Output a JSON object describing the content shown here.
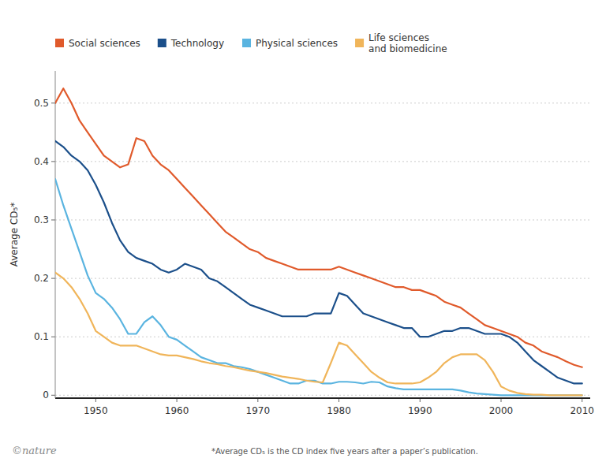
{
  "chart_data": {
    "type": "line",
    "y_label": "Average CD₅*",
    "annotations": [
      "*Average CD₅ is the CD index five years after a paper’s publication.",
      "©nature"
    ],
    "x": [
      1945,
      1946,
      1947,
      1948,
      1949,
      1950,
      1951,
      1952,
      1953,
      1954,
      1955,
      1956,
      1957,
      1958,
      1959,
      1960,
      1961,
      1962,
      1963,
      1964,
      1965,
      1966,
      1967,
      1968,
      1969,
      1970,
      1971,
      1972,
      1973,
      1974,
      1975,
      1976,
      1977,
      1978,
      1979,
      1980,
      1981,
      1982,
      1983,
      1984,
      1985,
      1986,
      1987,
      1988,
      1989,
      1990,
      1991,
      1992,
      1993,
      1994,
      1995,
      1996,
      1997,
      1998,
      1999,
      2000,
      2001,
      2002,
      2003,
      2004,
      2005,
      2006,
      2007,
      2008,
      2009,
      2010
    ],
    "series": [
      {
        "name": "Social sciences",
        "color": "#e05a2b",
        "values": [
          0.5,
          0.525,
          0.5,
          0.47,
          0.45,
          0.43,
          0.41,
          0.4,
          0.39,
          0.395,
          0.44,
          0.435,
          0.41,
          0.395,
          0.385,
          0.37,
          0.355,
          0.34,
          0.325,
          0.31,
          0.295,
          0.28,
          0.27,
          0.26,
          0.25,
          0.245,
          0.235,
          0.23,
          0.225,
          0.22,
          0.215,
          0.215,
          0.215,
          0.215,
          0.215,
          0.22,
          0.215,
          0.21,
          0.205,
          0.2,
          0.195,
          0.19,
          0.185,
          0.185,
          0.18,
          0.18,
          0.175,
          0.17,
          0.16,
          0.155,
          0.15,
          0.14,
          0.13,
          0.12,
          0.115,
          0.11,
          0.105,
          0.1,
          0.09,
          0.085,
          0.075,
          0.07,
          0.065,
          0.058,
          0.052,
          0.048
        ]
      },
      {
        "name": "Technology",
        "color": "#1b4f8a",
        "values": [
          0.435,
          0.425,
          0.41,
          0.4,
          0.385,
          0.36,
          0.33,
          0.295,
          0.265,
          0.245,
          0.235,
          0.23,
          0.225,
          0.215,
          0.21,
          0.215,
          0.225,
          0.22,
          0.215,
          0.2,
          0.195,
          0.185,
          0.175,
          0.165,
          0.155,
          0.15,
          0.145,
          0.14,
          0.135,
          0.135,
          0.135,
          0.135,
          0.14,
          0.14,
          0.14,
          0.175,
          0.17,
          0.155,
          0.14,
          0.135,
          0.13,
          0.125,
          0.12,
          0.115,
          0.115,
          0.1,
          0.1,
          0.105,
          0.11,
          0.11,
          0.115,
          0.115,
          0.11,
          0.105,
          0.105,
          0.105,
          0.1,
          0.09,
          0.075,
          0.06,
          0.05,
          0.04,
          0.03,
          0.025,
          0.02,
          0.02
        ]
      },
      {
        "name": "Physical sciences",
        "color": "#5ab4e0",
        "values": [
          0.37,
          0.325,
          0.285,
          0.245,
          0.205,
          0.175,
          0.165,
          0.15,
          0.13,
          0.105,
          0.105,
          0.125,
          0.135,
          0.12,
          0.1,
          0.095,
          0.085,
          0.075,
          0.065,
          0.06,
          0.055,
          0.055,
          0.05,
          0.048,
          0.045,
          0.04,
          0.035,
          0.03,
          0.025,
          0.02,
          0.02,
          0.025,
          0.025,
          0.02,
          0.02,
          0.023,
          0.023,
          0.022,
          0.02,
          0.023,
          0.022,
          0.015,
          0.012,
          0.01,
          0.01,
          0.01,
          0.01,
          0.01,
          0.01,
          0.01,
          0.008,
          0.005,
          0.003,
          0.002,
          0.001,
          0.0,
          0.0,
          0.0,
          0.0,
          0.0,
          0.0,
          0.0,
          0.0,
          0.0,
          0.0,
          0.0
        ]
      },
      {
        "name": "Life sciences\nand biomedicine",
        "color": "#f0b55a",
        "values": [
          0.21,
          0.2,
          0.185,
          0.165,
          0.14,
          0.11,
          0.1,
          0.09,
          0.085,
          0.085,
          0.085,
          0.08,
          0.075,
          0.07,
          0.068,
          0.068,
          0.065,
          0.062,
          0.058,
          0.055,
          0.053,
          0.05,
          0.048,
          0.045,
          0.042,
          0.04,
          0.038,
          0.035,
          0.032,
          0.03,
          0.028,
          0.025,
          0.023,
          0.022,
          0.055,
          0.09,
          0.085,
          0.07,
          0.055,
          0.04,
          0.03,
          0.022,
          0.02,
          0.02,
          0.02,
          0.022,
          0.03,
          0.04,
          0.055,
          0.065,
          0.07,
          0.07,
          0.07,
          0.06,
          0.04,
          0.015,
          0.008,
          0.004,
          0.002,
          0.001,
          0.001,
          0.0,
          0.0,
          0.0,
          0.0,
          0.0
        ]
      }
    ],
    "xlim": [
      1945,
      2011
    ],
    "ylim": [
      -0.005,
      0.555
    ],
    "xticks": [
      1950,
      1960,
      1970,
      1980,
      1990,
      2000,
      2010
    ],
    "yticks": [
      0,
      0.1,
      0.2,
      0.3,
      0.4,
      0.5
    ],
    "grid": true,
    "legend": "top"
  }
}
